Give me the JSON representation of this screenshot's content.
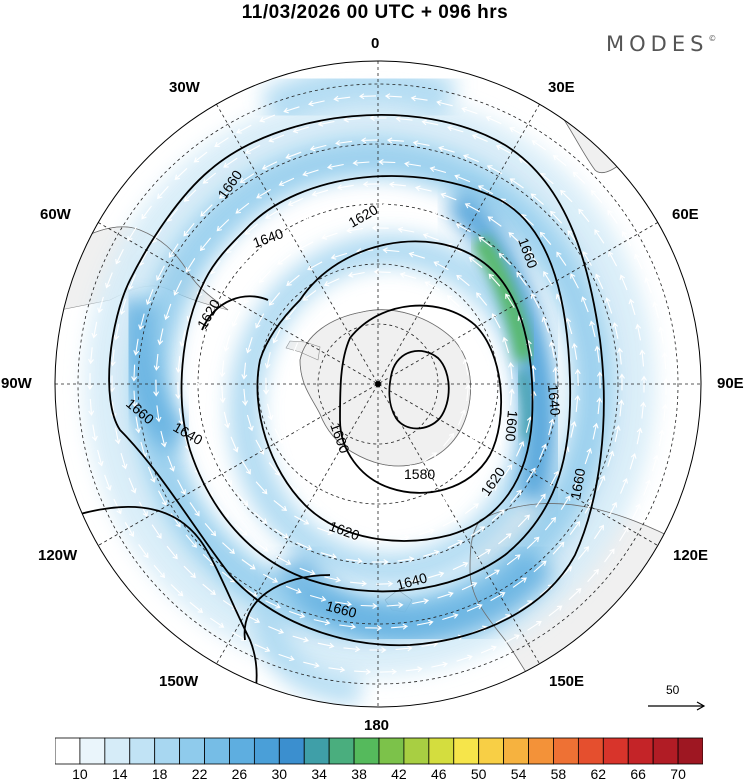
{
  "title": "11/03/2026  00 UTC  + 096 hrs",
  "brand": "MODES",
  "brand_mark": "©",
  "longitude_labels": {
    "lon0": "0",
    "lon30e": "30E",
    "lon60e": "60E",
    "lon90e": "90E",
    "lon120e": "120E",
    "lon150e": "150E",
    "lon180": "180",
    "lon150w": "150W",
    "lon120w": "120W",
    "lon90w": "90W",
    "lon60w": "60W",
    "lon30w": "30W"
  },
  "contours": [
    {
      "value": "1580",
      "label": "1580"
    },
    {
      "value": "1600",
      "label": "1600"
    },
    {
      "value": "1620",
      "label": "1620"
    },
    {
      "value": "1640",
      "label": "1640"
    },
    {
      "value": "1660",
      "label": "1660"
    }
  ],
  "reference_vector": {
    "label": "50"
  },
  "colorbar": {
    "ticks": [
      "10",
      "14",
      "18",
      "22",
      "26",
      "30",
      "34",
      "38",
      "42",
      "46",
      "50",
      "54",
      "58",
      "62",
      "66",
      "70"
    ],
    "colors": [
      "#ffffff",
      "#eaf5fb",
      "#d6ecf8",
      "#c1e3f5",
      "#a8d7f1",
      "#8fcbec",
      "#76bde6",
      "#5eaee0",
      "#4a9fd8",
      "#3b8fcf",
      "#3f9fa8",
      "#4aae7e",
      "#55ba5c",
      "#7cc24a",
      "#a8cf42",
      "#d4dd3e",
      "#f6e54a",
      "#f8cf45",
      "#f6b23f",
      "#f39239",
      "#ee7134",
      "#e54f2e",
      "#d8342b",
      "#c42428",
      "#b11c25",
      "#9e1722"
    ]
  }
}
